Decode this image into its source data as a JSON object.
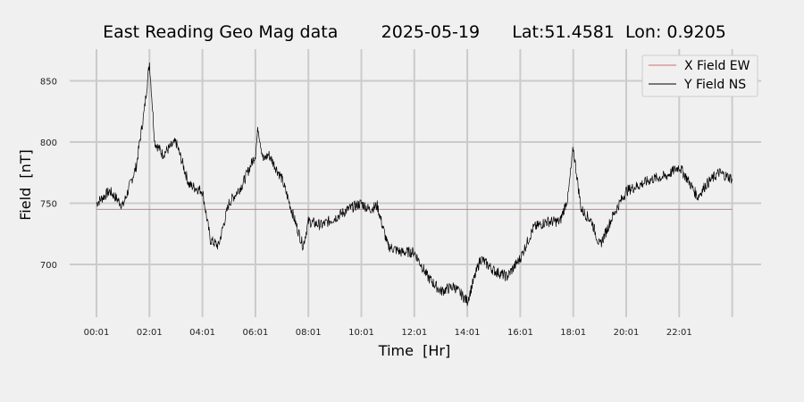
{
  "chart_data": {
    "type": "line",
    "title": "East Reading Geo Mag data        2025-05-19      Lat:51.4581  Lon: 0.9205",
    "xlabel": "Time  [Hr]",
    "ylabel": "Field  [nT]",
    "x_tick_labels": [
      "00:01",
      "02:01",
      "04:01",
      "06:01",
      "08:01",
      "10:01",
      "12:01",
      "14:01",
      "16:01",
      "18:01",
      "20:01",
      "22:01"
    ],
    "x_range_hours": [
      -0.5,
      24.5
    ],
    "ylim": [
      655,
      875
    ],
    "y_ticks": [
      700,
      750,
      800,
      850
    ],
    "grid": true,
    "legend_position": "top-right",
    "series": [
      {
        "name": "X Field EW",
        "color": "#e06666",
        "x_hours": [
          0,
          24
        ],
        "values": [
          745,
          745
        ]
      },
      {
        "name": "Y Field NS",
        "color": "#000000",
        "x_hours": [
          0,
          0.5,
          1.0,
          1.5,
          1.8,
          2.0,
          2.2,
          2.5,
          3.0,
          3.5,
          4.0,
          4.3,
          4.6,
          5.0,
          5.5,
          6.0,
          6.1,
          6.3,
          6.5,
          7.0,
          7.5,
          7.8,
          8.0,
          8.5,
          9.0,
          9.5,
          10.0,
          10.3,
          10.6,
          11.0,
          11.5,
          12.0,
          12.5,
          13.0,
          13.5,
          14.0,
          14.5,
          15.0,
          15.5,
          16.0,
          16.5,
          17.0,
          17.5,
          17.8,
          18.0,
          18.3,
          18.7,
          19.0,
          19.5,
          20.0,
          20.5,
          21.0,
          21.5,
          22.0,
          22.3,
          22.7,
          23.0,
          23.5,
          24.0
        ],
        "values": [
          750,
          760,
          748,
          780,
          825,
          865,
          800,
          790,
          800,
          765,
          760,
          720,
          715,
          750,
          765,
          790,
          812,
          785,
          790,
          770,
          735,
          715,
          735,
          732,
          738,
          745,
          750,
          745,
          748,
          715,
          710,
          710,
          690,
          678,
          682,
          670,
          705,
          695,
          690,
          705,
          730,
          735,
          735,
          755,
          795,
          745,
          735,
          715,
          740,
          760,
          765,
          770,
          772,
          780,
          770,
          755,
          765,
          775,
          770
        ]
      }
    ]
  }
}
